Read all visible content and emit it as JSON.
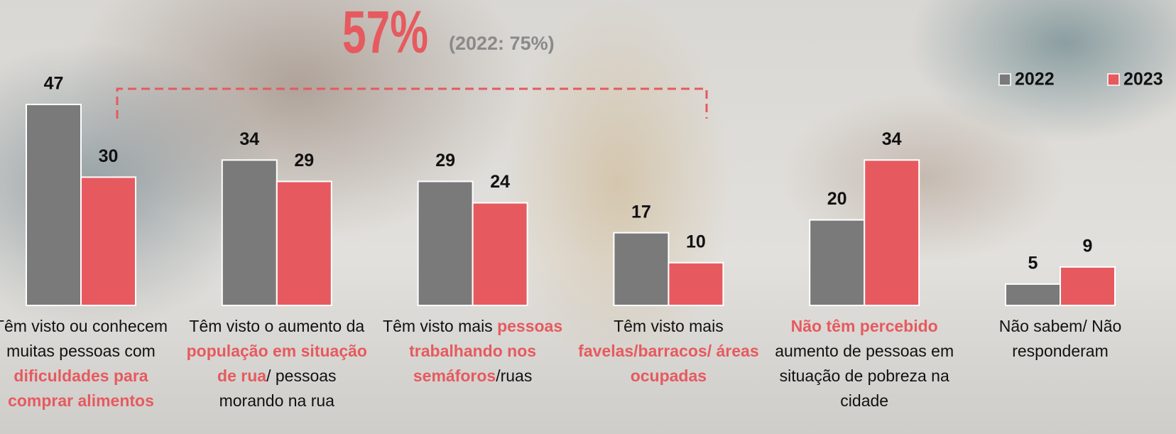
{
  "chart_data": {
    "type": "bar",
    "annotation": {
      "headline": "57%",
      "headline_color": "#e65a5f",
      "note": "(2022: 75%)",
      "note_color": "#8a8a8a"
    },
    "categories": [
      [
        {
          "text": "Têm visto ou conhecem muitas pessoas com "
        },
        {
          "text": "dificuldades para comprar alimentos",
          "color": "#e65a5f"
        }
      ],
      [
        {
          "text": "Têm visto o aumento da "
        },
        {
          "text": "população em situação de rua",
          "color": "#e65a5f"
        },
        {
          "text": "/ pessoas morando na rua"
        }
      ],
      [
        {
          "text": "Têm visto mais "
        },
        {
          "text": "pessoas trabalhando nos semáforos",
          "color": "#e65a5f"
        },
        {
          "text": "/ruas"
        }
      ],
      [
        {
          "text": "Têm visto mais "
        },
        {
          "text": "favelas/barracos/ áreas ocupadas",
          "color": "#e65a5f"
        }
      ],
      [
        {
          "text": "Não têm percebido",
          "color": "#e65a5f"
        },
        {
          "text": " aumento de pessoas em situação de pobreza na cidade"
        }
      ],
      [
        {
          "text": "Não sabem/ Não responderam"
        }
      ]
    ],
    "series": [
      {
        "name": "2022",
        "color": "#7a7a7a",
        "values": [
          47,
          34,
          29,
          17,
          20,
          5
        ]
      },
      {
        "name": "2023",
        "color": "#e65a5f",
        "values": [
          30,
          29,
          24,
          10,
          34,
          9
        ]
      }
    ],
    "legend": "top-right"
  }
}
